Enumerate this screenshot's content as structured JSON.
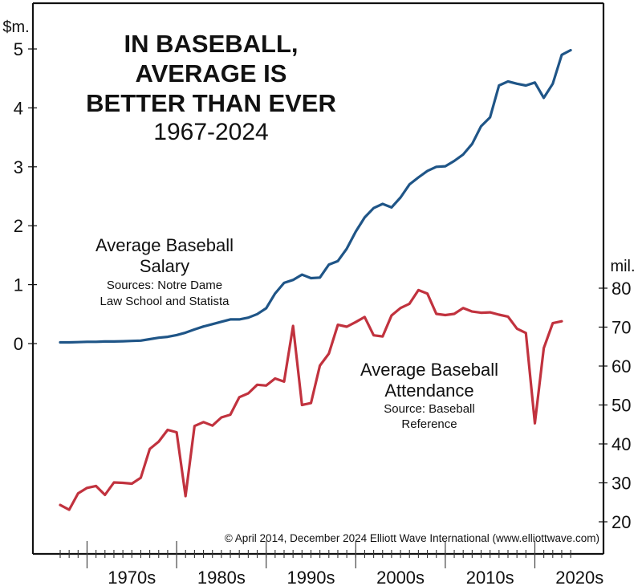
{
  "chart_data": {
    "type": "line",
    "title_lines": [
      "IN BASEBALL,",
      "AVERAGE IS",
      "BETTER THAN EVER"
    ],
    "subtitle": "1967-2024",
    "xlabel": "",
    "x_range": [
      1967,
      2024
    ],
    "x_tick_labels": [
      "1970s",
      "1980s",
      "1990s",
      "2000s",
      "2010s",
      "2020s"
    ],
    "x_major_ticks": [
      1965,
      1975,
      1985,
      1995,
      2005,
      2015
    ],
    "left_axis": {
      "unit_label": "$m.",
      "ticks": [
        0,
        1,
        2,
        3,
        4,
        5
      ],
      "tick_labels": [
        "0",
        "1",
        "2",
        "3",
        "4",
        "5"
      ],
      "ylim": [
        0,
        5
      ]
    },
    "right_axis": {
      "unit_label": "mil.",
      "ticks": [
        20,
        30,
        40,
        50,
        60,
        70,
        80
      ],
      "tick_labels": [
        "20",
        "30",
        "40",
        "50",
        "60",
        "70",
        "80"
      ],
      "ylim": [
        20,
        80
      ]
    },
    "grid": false,
    "series": [
      {
        "name": "Average Baseball Salary",
        "axis": "left",
        "color": "#1f5587",
        "label_lines": [
          "Average Baseball",
          "Salary"
        ],
        "source_lines": [
          "Sources: Notre Dame",
          "Law School and Statista"
        ],
        "x": [
          1967,
          1968,
          1969,
          1970,
          1971,
          1972,
          1973,
          1974,
          1975,
          1976,
          1977,
          1978,
          1979,
          1980,
          1981,
          1982,
          1983,
          1984,
          1985,
          1986,
          1987,
          1988,
          1989,
          1990,
          1991,
          1992,
          1993,
          1994,
          1995,
          1996,
          1997,
          1998,
          1999,
          2000,
          2001,
          2002,
          2003,
          2004,
          2005,
          2006,
          2007,
          2008,
          2009,
          2010,
          2011,
          2012,
          2013,
          2014,
          2015,
          2016,
          2017,
          2018,
          2019,
          2020,
          2021,
          2022,
          2023,
          2024
        ],
        "values": [
          0.02,
          0.02,
          0.025,
          0.03,
          0.03,
          0.035,
          0.035,
          0.04,
          0.045,
          0.05,
          0.075,
          0.1,
          0.115,
          0.145,
          0.185,
          0.24,
          0.29,
          0.33,
          0.37,
          0.41,
          0.41,
          0.44,
          0.5,
          0.6,
          0.85,
          1.03,
          1.08,
          1.17,
          1.11,
          1.12,
          1.34,
          1.4,
          1.61,
          1.9,
          2.14,
          2.3,
          2.37,
          2.31,
          2.48,
          2.7,
          2.82,
          2.93,
          3.0,
          3.01,
          3.1,
          3.21,
          3.39,
          3.69,
          3.84,
          4.38,
          4.45,
          4.41,
          4.38,
          4.43,
          4.17,
          4.41,
          4.9,
          4.98
        ]
      },
      {
        "name": "Average Baseball Attendance",
        "axis": "right",
        "color": "#c1323e",
        "label_lines": [
          "Average Baseball",
          "Attendance"
        ],
        "source_lines": [
          "Source: Baseball",
          "Reference"
        ],
        "x": [
          1967,
          1968,
          1969,
          1970,
          1971,
          1972,
          1973,
          1974,
          1975,
          1976,
          1977,
          1978,
          1979,
          1980,
          1981,
          1982,
          1983,
          1984,
          1985,
          1986,
          1987,
          1988,
          1989,
          1990,
          1991,
          1992,
          1993,
          1994,
          1995,
          1996,
          1997,
          1998,
          1999,
          2000,
          2001,
          2002,
          2003,
          2004,
          2005,
          2006,
          2007,
          2008,
          2009,
          2010,
          2011,
          2012,
          2013,
          2014,
          2015,
          2016,
          2017,
          2018,
          2019,
          2020,
          2021,
          2022,
          2023
        ],
        "values": [
          24.3,
          23.1,
          27.3,
          28.7,
          29.2,
          26.9,
          30.1,
          30.0,
          29.8,
          31.3,
          38.7,
          40.6,
          43.6,
          43.0,
          26.6,
          44.6,
          45.6,
          44.7,
          46.8,
          47.5,
          52.0,
          53.0,
          55.2,
          55.0,
          56.8,
          56.0,
          70.3,
          50.0,
          50.5,
          60.1,
          63.2,
          70.6,
          70.1,
          71.3,
          72.6,
          67.9,
          67.6,
          73.0,
          74.9,
          76.0,
          79.5,
          78.6,
          73.4,
          73.1,
          73.4,
          74.9,
          74.0,
          73.7,
          73.8,
          73.2,
          72.7,
          69.6,
          68.5,
          45.3,
          64.6,
          71.0,
          71.5
        ]
      }
    ],
    "annotation": "© April 2014, December 2024 Elliott Wave International (www.elliottwave.com)"
  }
}
